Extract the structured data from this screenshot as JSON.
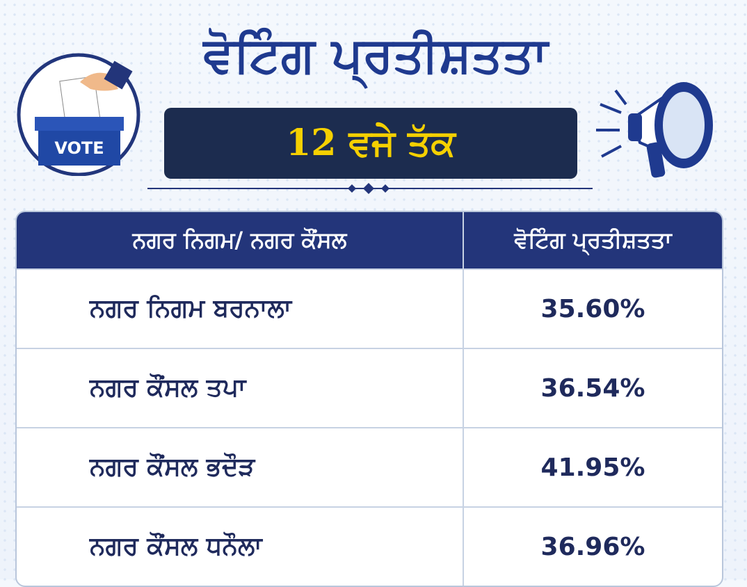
{
  "header": {
    "title": "ਵੋਟਿੰਗ ਪ੍ਰਤੀਸ਼ਤਤਾ",
    "subtitle": "12 ਵਜੇ ਤੱਕ"
  },
  "icon": {
    "label": "VOTE"
  },
  "table": {
    "columns": [
      "ਨਗਰ ਨਿਗਮ/ ਨਗਰ ਕੌਂਸਲ",
      "ਵੋਟਿੰਗ ਪ੍ਰਤੀਸ਼ਤਤਾ"
    ],
    "rows": [
      [
        "ਨਗਰ ਨਿਗਮ ਬਰਨਾਲਾ",
        "35.60%"
      ],
      [
        "ਨਗਰ ਕੌਂਸਲ ਤਪਾ",
        "36.54%"
      ],
      [
        "ਨਗਰ ਕੌਂਸਲ ਭਦੌੜ",
        "41.95%"
      ],
      [
        "ਨਗਰ ਕੌਂਸਲ ਧਨੌਲਾ",
        "36.96%"
      ]
    ]
  }
}
